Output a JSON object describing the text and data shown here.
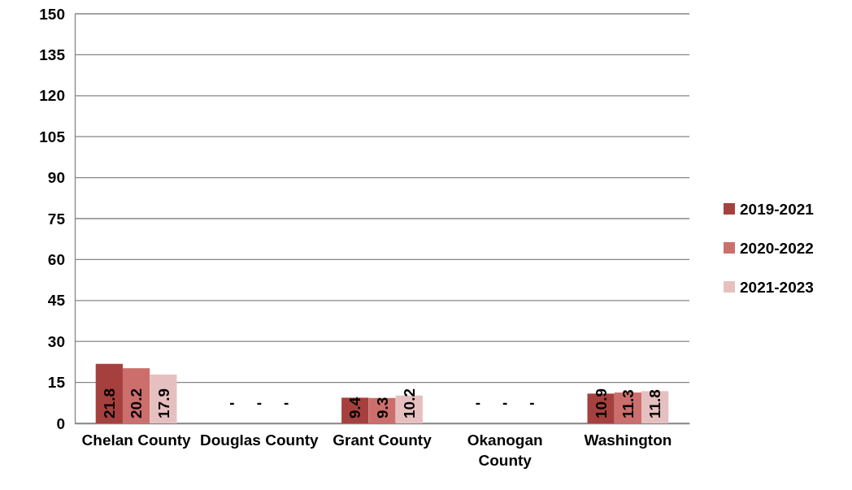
{
  "chart_data": {
    "type": "bar",
    "categories": [
      "Chelan County",
      "Douglas County",
      "Grant County",
      "Okanogan County",
      "Washington"
    ],
    "series": [
      {
        "name": "2019-2021",
        "color": "#a5403f",
        "values": [
          21.8,
          null,
          9.4,
          null,
          10.9
        ],
        "value_labels": [
          "21.8",
          "-",
          "9.4",
          "-",
          "10.9"
        ]
      },
      {
        "name": "2020-2022",
        "color": "#cc6f6c",
        "values": [
          20.2,
          null,
          9.3,
          null,
          11.3
        ],
        "value_labels": [
          "20.2",
          "-",
          "9.3",
          "-",
          "11.3"
        ]
      },
      {
        "name": "2021-2023",
        "color": "#e6c0c0",
        "values": [
          17.9,
          null,
          10.2,
          null,
          11.8
        ],
        "value_labels": [
          "17.9",
          "-",
          "10.2",
          "-",
          "11.8"
        ]
      }
    ],
    "ylim": [
      0,
      150
    ],
    "yticks": [
      0,
      15,
      30,
      45,
      60,
      75,
      90,
      105,
      120,
      135,
      150
    ],
    "grid": "y",
    "legend": "right"
  }
}
